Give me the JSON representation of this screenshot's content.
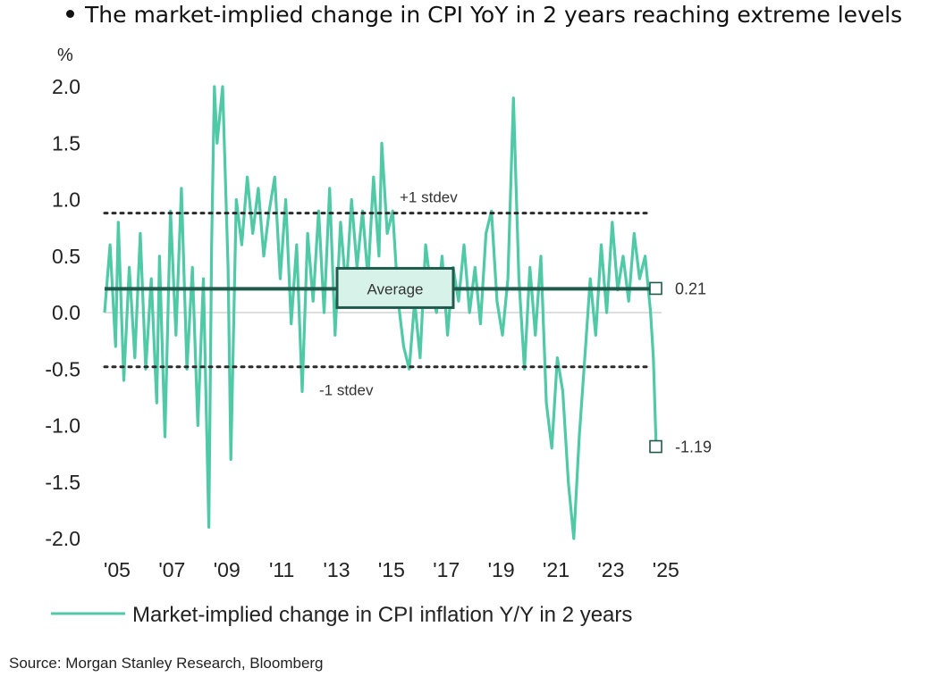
{
  "header": {
    "bullet_text": "The market-implied change in CPI YoY in 2 years reaching extreme levels"
  },
  "source": "Source: Morgan Stanley Research, Bloomberg",
  "colors": {
    "series": "#4fc9a6",
    "average_line": "#1f5a4c",
    "average_box_fill": "#d7f3e9",
    "stdev_line": "#2b2b2b",
    "text": "#222222"
  },
  "chart_data": {
    "type": "line",
    "title": "",
    "ylabel": "%",
    "xlabel": "",
    "ylim": [
      -2.0,
      2.0
    ],
    "xlim": [
      2005.0,
      2025.3
    ],
    "yticks": [
      2.0,
      1.5,
      1.0,
      0.5,
      0.0,
      -0.5,
      -1.0,
      -1.5,
      -2.0
    ],
    "ytick_labels": [
      "2.0",
      "1.5",
      "1.0",
      "0.5",
      "0.0",
      "-0.5",
      "-1.0",
      "-1.5",
      "-2.0"
    ],
    "xticks": [
      2005,
      2007,
      2009,
      2011,
      2013,
      2015,
      2017,
      2019,
      2021,
      2023,
      2025
    ],
    "xtick_labels": [
      "'05",
      "'07",
      "'09",
      "'11",
      "'13",
      "'15",
      "'17",
      "'19",
      "'21",
      "'23",
      "'25"
    ],
    "legend": "Market-implied change in CPI inflation Y/Y in 2 years",
    "reference_lines": [
      {
        "name": "+1 stdev",
        "label": "+1 stdev",
        "y": 0.88,
        "style": "dotted"
      },
      {
        "name": "-1 stdev",
        "label": "-1 stdev",
        "y": -0.48,
        "style": "dotted"
      },
      {
        "name": "Average",
        "label": "Average",
        "y": 0.21,
        "style": "solid"
      }
    ],
    "end_labels": [
      {
        "label": "0.21",
        "y": 0.21
      },
      {
        "label": "-1.19",
        "y": -1.19
      }
    ],
    "series": [
      {
        "name": "Market-implied change in CPI inflation Y/Y in 2 years",
        "x": [
          2005.0,
          2005.2,
          2005.4,
          2005.5,
          2005.7,
          2005.9,
          2006.1,
          2006.3,
          2006.5,
          2006.7,
          2006.9,
          2007.0,
          2007.2,
          2007.4,
          2007.6,
          2007.8,
          2008.0,
          2008.2,
          2008.4,
          2008.6,
          2008.8,
          2008.9,
          2009.0,
          2009.1,
          2009.3,
          2009.5,
          2009.6,
          2009.8,
          2010.0,
          2010.2,
          2010.4,
          2010.6,
          2010.8,
          2011.0,
          2011.2,
          2011.4,
          2011.6,
          2011.8,
          2012.0,
          2012.2,
          2012.4,
          2012.6,
          2012.8,
          2013.0,
          2013.2,
          2013.4,
          2013.6,
          2013.8,
          2014.0,
          2014.2,
          2014.4,
          2014.6,
          2014.8,
          2015.0,
          2015.1,
          2015.3,
          2015.5,
          2015.7,
          2015.9,
          2016.1,
          2016.3,
          2016.5,
          2016.7,
          2016.9,
          2017.1,
          2017.3,
          2017.5,
          2017.7,
          2017.9,
          2018.1,
          2018.3,
          2018.5,
          2018.7,
          2018.9,
          2019.1,
          2019.3,
          2019.5,
          2019.7,
          2019.9,
          2020.0,
          2020.1,
          2020.3,
          2020.5,
          2020.7,
          2020.9,
          2021.1,
          2021.3,
          2021.5,
          2021.7,
          2021.9,
          2022.1,
          2022.3,
          2022.5,
          2022.7,
          2022.9,
          2023.1,
          2023.3,
          2023.5,
          2023.7,
          2023.9,
          2024.1,
          2024.3,
          2024.5,
          2024.7,
          2024.9,
          2025.0,
          2025.1,
          2025.2
        ],
        "y": [
          0.0,
          0.6,
          -0.3,
          0.8,
          -0.6,
          0.4,
          -0.4,
          0.7,
          -0.5,
          0.3,
          -0.8,
          0.5,
          -1.1,
          0.9,
          -0.2,
          1.1,
          -0.5,
          0.4,
          -1.0,
          0.3,
          -1.9,
          0.6,
          2.0,
          1.5,
          2.0,
          0.4,
          -1.3,
          1.0,
          0.6,
          1.2,
          0.7,
          1.1,
          0.5,
          0.9,
          1.2,
          0.3,
          1.0,
          -0.1,
          0.6,
          -0.7,
          0.7,
          0.1,
          0.9,
          0.0,
          1.1,
          -0.2,
          0.8,
          0.2,
          1.0,
          0.4,
          0.9,
          0.3,
          1.2,
          0.5,
          1.5,
          0.7,
          0.9,
          0.1,
          -0.3,
          -0.5,
          0.1,
          -0.4,
          0.6,
          0.2,
          0.0,
          0.5,
          -0.2,
          0.4,
          0.1,
          0.6,
          0.0,
          0.4,
          -0.1,
          0.7,
          0.9,
          0.1,
          -0.2,
          0.3,
          1.9,
          1.1,
          0.3,
          -0.5,
          0.4,
          -0.2,
          0.5,
          -0.8,
          -1.2,
          -0.4,
          -0.7,
          -1.5,
          -2.0,
          -1.1,
          -0.4,
          0.3,
          -0.2,
          0.6,
          0.0,
          0.8,
          0.2,
          0.5,
          0.1,
          0.7,
          0.3,
          0.5,
          0.0,
          -0.4,
          -1.19,
          -1.19
        ]
      }
    ]
  }
}
